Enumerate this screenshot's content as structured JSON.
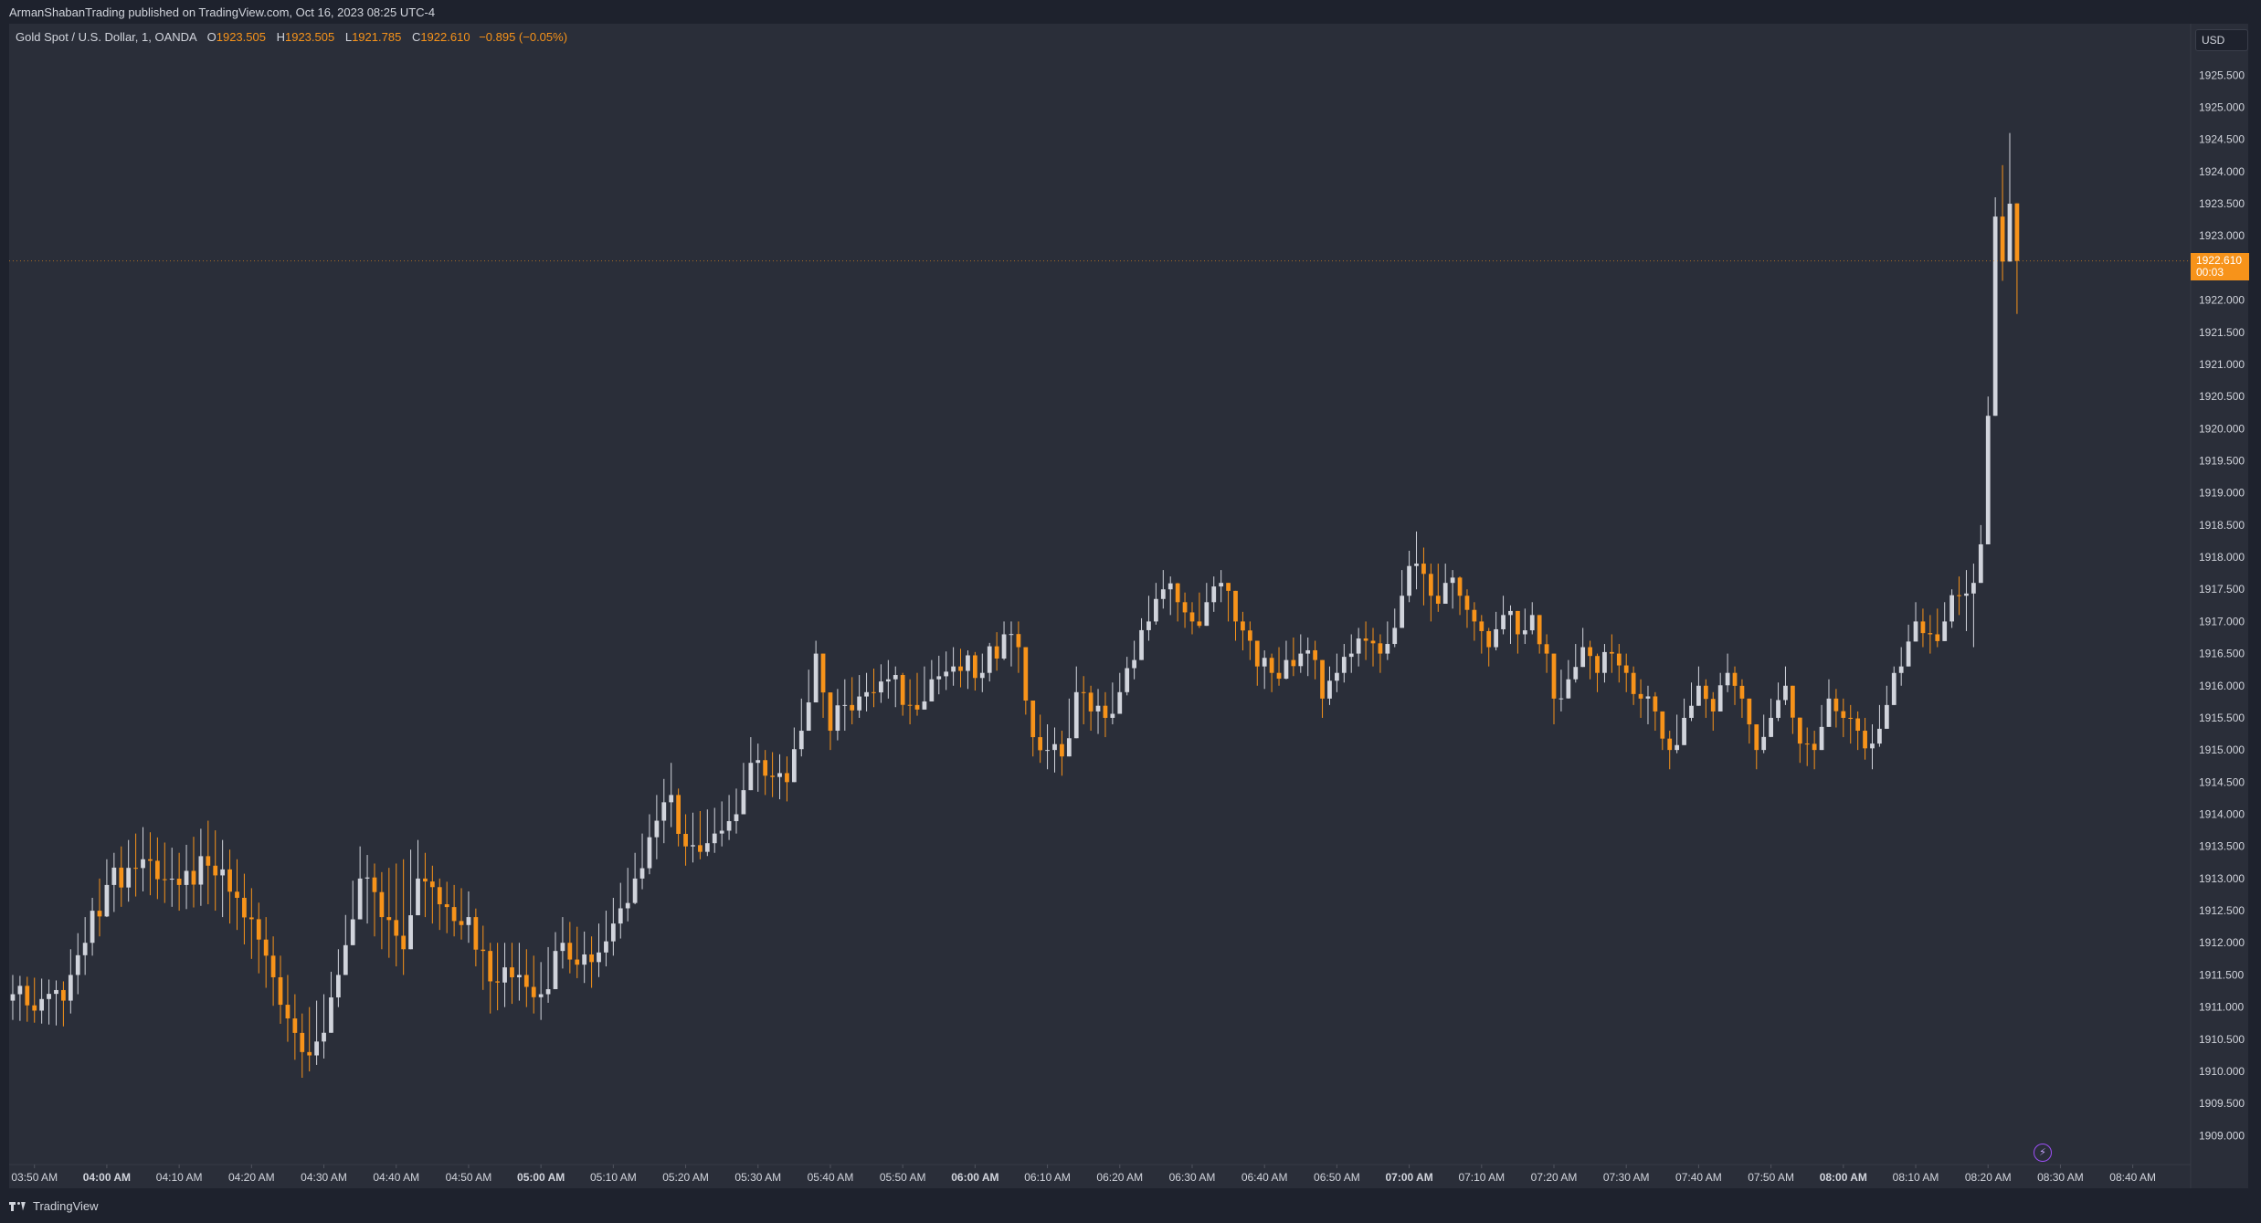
{
  "header": {
    "publisher": "ArmanShabanTrading published on TradingView.com, Oct 16, 2023 08:25 UTC-4"
  },
  "legend": {
    "symbol": "Gold Spot / U.S. Dollar, 1, OANDA",
    "open_label": "O",
    "open": "1923.505",
    "high_label": "H",
    "high": "1923.505",
    "low_label": "L",
    "low": "1921.785",
    "close_label": "C",
    "close": "1922.610",
    "change": "−0.895 (−0.05%)"
  },
  "price_scale": {
    "currency": "USD",
    "ticks": [
      "1925.500",
      "1925.000",
      "1924.500",
      "1924.000",
      "1923.500",
      "1923.000",
      "1922.000",
      "1921.500",
      "1921.000",
      "1920.500",
      "1920.000",
      "1919.500",
      "1919.000",
      "1918.500",
      "1918.000",
      "1917.500",
      "1917.000",
      "1916.500",
      "1916.000",
      "1915.500",
      "1915.000",
      "1914.500",
      "1914.000",
      "1913.500",
      "1913.000",
      "1912.500",
      "1912.000",
      "1911.500",
      "1911.000",
      "1910.500",
      "1910.000",
      "1909.500",
      "1909.000"
    ],
    "current_price": "1922.610",
    "countdown": "00:03"
  },
  "footer": {
    "brand": "TradingView"
  },
  "icons": {
    "brand_logo": "tradingview-logo-icon",
    "alert": "lightning-bolt-icon"
  },
  "colors": {
    "up": "#d1d4dc",
    "down": "#f7931a",
    "background": "#2a2e39",
    "frame": "#1e222d",
    "accent": "#f7931a"
  },
  "chart_data": {
    "type": "candlestick",
    "title": "",
    "xlabel": "",
    "ylabel": "",
    "ylim": [
      1908.55,
      1926.3
    ],
    "x_ticks": [
      {
        "t": -10,
        "label": "03:50 AM",
        "bold": false
      },
      {
        "t": 0,
        "label": "04:00 AM",
        "bold": true
      },
      {
        "t": 10,
        "label": "04:10 AM",
        "bold": false
      },
      {
        "t": 20,
        "label": "04:20 AM",
        "bold": false
      },
      {
        "t": 30,
        "label": "04:30 AM",
        "bold": false
      },
      {
        "t": 40,
        "label": "04:40 AM",
        "bold": false
      },
      {
        "t": 50,
        "label": "04:50 AM",
        "bold": false
      },
      {
        "t": 60,
        "label": "05:00 AM",
        "bold": true
      },
      {
        "t": 70,
        "label": "05:10 AM",
        "bold": false
      },
      {
        "t": 80,
        "label": "05:20 AM",
        "bold": false
      },
      {
        "t": 90,
        "label": "05:30 AM",
        "bold": false
      },
      {
        "t": 100,
        "label": "05:40 AM",
        "bold": false
      },
      {
        "t": 110,
        "label": "05:50 AM",
        "bold": false
      },
      {
        "t": 120,
        "label": "06:00 AM",
        "bold": true
      },
      {
        "t": 130,
        "label": "06:10 AM",
        "bold": false
      },
      {
        "t": 140,
        "label": "06:20 AM",
        "bold": false
      },
      {
        "t": 150,
        "label": "06:30 AM",
        "bold": false
      },
      {
        "t": 160,
        "label": "06:40 AM",
        "bold": false
      },
      {
        "t": 170,
        "label": "06:50 AM",
        "bold": false
      },
      {
        "t": 180,
        "label": "07:00 AM",
        "bold": true
      },
      {
        "t": 190,
        "label": "07:10 AM",
        "bold": false
      },
      {
        "t": 200,
        "label": "07:20 AM",
        "bold": false
      },
      {
        "t": 210,
        "label": "07:30 AM",
        "bold": false
      },
      {
        "t": 220,
        "label": "07:40 AM",
        "bold": false
      },
      {
        "t": 230,
        "label": "07:50 AM",
        "bold": false
      },
      {
        "t": 240,
        "label": "08:00 AM",
        "bold": true
      },
      {
        "t": 250,
        "label": "08:10 AM",
        "bold": false
      },
      {
        "t": 260,
        "label": "08:20 AM",
        "bold": false
      },
      {
        "t": 270,
        "label": "08:30 AM",
        "bold": false
      },
      {
        "t": 280,
        "label": "08:40 AM",
        "bold": false
      }
    ],
    "grid": false,
    "series": [
      {
        "keys": [
          {
            "t": -13,
            "c": 1911.2,
            "h": 1911.5,
            "l": 1910.8
          },
          {
            "t": -6,
            "c": 1911.1,
            "h": 1911.4,
            "l": 1910.7
          },
          {
            "t": -5,
            "c": 1911.5,
            "h": 1911.9,
            "l": 1910.9
          },
          {
            "t": -3,
            "c": 1912.0,
            "h": 1912.4,
            "l": 1911.5
          },
          {
            "t": 0,
            "c": 1912.9,
            "h": 1913.3,
            "l": 1912.4
          },
          {
            "t": 5,
            "c": 1913.3,
            "h": 1913.8,
            "l": 1912.8
          },
          {
            "t": 10,
            "c": 1912.9,
            "h": 1913.4,
            "l": 1912.5
          },
          {
            "t": 14,
            "c": 1913.2,
            "h": 1913.9,
            "l": 1912.6
          },
          {
            "t": 18,
            "c": 1912.7,
            "h": 1913.3,
            "l": 1912.2
          },
          {
            "t": 22,
            "c": 1911.8,
            "h": 1912.4,
            "l": 1911.3
          },
          {
            "t": 27,
            "c": 1910.3,
            "h": 1910.9,
            "l": 1909.9
          },
          {
            "t": 30,
            "c": 1910.6,
            "h": 1911.2,
            "l": 1910.2
          },
          {
            "t": 32,
            "c": 1911.5,
            "h": 1911.9,
            "l": 1911.0
          },
          {
            "t": 35,
            "c": 1913.0,
            "h": 1913.5,
            "l": 1912.5
          },
          {
            "t": 38,
            "c": 1912.4,
            "h": 1913.1,
            "l": 1911.9
          },
          {
            "t": 41,
            "c": 1911.9,
            "h": 1913.3,
            "l": 1911.5
          },
          {
            "t": 43,
            "c": 1913.0,
            "h": 1913.6,
            "l": 1912.5
          },
          {
            "t": 46,
            "c": 1912.6,
            "h": 1913.0,
            "l": 1912.2
          },
          {
            "t": 50,
            "c": 1912.4,
            "h": 1912.8,
            "l": 1912.0
          },
          {
            "t": 53,
            "c": 1911.4,
            "h": 1912.0,
            "l": 1910.9
          },
          {
            "t": 57,
            "c": 1911.5,
            "h": 1912.0,
            "l": 1911.1
          },
          {
            "t": 60,
            "c": 1911.2,
            "h": 1911.7,
            "l": 1910.8
          },
          {
            "t": 63,
            "c": 1912.0,
            "h": 1912.4,
            "l": 1911.6
          },
          {
            "t": 67,
            "c": 1911.7,
            "h": 1912.1,
            "l": 1911.3
          },
          {
            "t": 70,
            "c": 1912.3,
            "h": 1912.7,
            "l": 1911.8
          },
          {
            "t": 73,
            "c": 1913.0,
            "h": 1913.4,
            "l": 1912.6
          },
          {
            "t": 76,
            "c": 1913.9,
            "h": 1914.3,
            "l": 1913.3
          },
          {
            "t": 78,
            "c": 1914.3,
            "h": 1914.8,
            "l": 1913.8
          },
          {
            "t": 80,
            "c": 1913.5,
            "h": 1914.0,
            "l": 1913.2
          },
          {
            "t": 84,
            "c": 1913.7,
            "h": 1914.1,
            "l": 1913.4
          },
          {
            "t": 87,
            "c": 1914.0,
            "h": 1914.4,
            "l": 1913.7
          },
          {
            "t": 89,
            "c": 1914.8,
            "h": 1915.2,
            "l": 1914.4
          },
          {
            "t": 91,
            "c": 1914.6,
            "h": 1915.0,
            "l": 1914.3
          },
          {
            "t": 94,
            "c": 1914.5,
            "h": 1914.9,
            "l": 1914.2
          },
          {
            "t": 96,
            "c": 1915.3,
            "h": 1915.8,
            "l": 1914.9
          },
          {
            "t": 98,
            "c": 1916.5,
            "h": 1916.7,
            "l": 1916.0
          },
          {
            "t": 100,
            "c": 1915.3,
            "h": 1915.8,
            "l": 1915.0
          },
          {
            "t": 102,
            "c": 1915.7,
            "h": 1916.1,
            "l": 1915.3
          },
          {
            "t": 105,
            "c": 1915.9,
            "h": 1916.2,
            "l": 1915.6
          },
          {
            "t": 108,
            "c": 1916.1,
            "h": 1916.4,
            "l": 1915.8
          },
          {
            "t": 111,
            "c": 1915.7,
            "h": 1916.1,
            "l": 1915.4
          },
          {
            "t": 114,
            "c": 1916.1,
            "h": 1916.4,
            "l": 1915.8
          },
          {
            "t": 117,
            "c": 1916.3,
            "h": 1916.6,
            "l": 1916.0
          },
          {
            "t": 121,
            "c": 1916.2,
            "h": 1916.5,
            "l": 1915.9
          },
          {
            "t": 124,
            "c": 1916.8,
            "h": 1917.0,
            "l": 1916.4
          },
          {
            "t": 126,
            "c": 1916.6,
            "h": 1917.0,
            "l": 1916.2
          },
          {
            "t": 128,
            "c": 1915.2,
            "h": 1915.7,
            "l": 1914.9
          },
          {
            "t": 130,
            "c": 1915.0,
            "h": 1915.4,
            "l": 1914.7
          },
          {
            "t": 132,
            "c": 1914.9,
            "h": 1915.3,
            "l": 1914.6
          },
          {
            "t": 134,
            "c": 1915.9,
            "h": 1916.3,
            "l": 1915.5
          },
          {
            "t": 136,
            "c": 1915.6,
            "h": 1916.0,
            "l": 1915.3
          },
          {
            "t": 138,
            "c": 1915.5,
            "h": 1915.9,
            "l": 1915.2
          },
          {
            "t": 140,
            "c": 1915.9,
            "h": 1916.2,
            "l": 1915.6
          },
          {
            "t": 142,
            "c": 1916.4,
            "h": 1916.7,
            "l": 1916.1
          },
          {
            "t": 144,
            "c": 1917.0,
            "h": 1917.4,
            "l": 1916.7
          },
          {
            "t": 146,
            "c": 1917.5,
            "h": 1917.8,
            "l": 1917.2
          },
          {
            "t": 148,
            "c": 1917.3,
            "h": 1917.6,
            "l": 1917.0
          },
          {
            "t": 150,
            "c": 1917.0,
            "h": 1917.3,
            "l": 1916.8
          },
          {
            "t": 152,
            "c": 1917.3,
            "h": 1917.6,
            "l": 1917.0
          },
          {
            "t": 154,
            "c": 1917.6,
            "h": 1917.8,
            "l": 1917.3
          },
          {
            "t": 156,
            "c": 1917.0,
            "h": 1917.3,
            "l": 1916.7
          },
          {
            "t": 158,
            "c": 1916.7,
            "h": 1917.0,
            "l": 1916.4
          },
          {
            "t": 159,
            "c": 1916.3,
            "h": 1916.6,
            "l": 1916.0
          },
          {
            "t": 161,
            "c": 1916.2,
            "h": 1916.5,
            "l": 1915.9
          },
          {
            "t": 163,
            "c": 1916.4,
            "h": 1916.7,
            "l": 1916.1
          },
          {
            "t": 165,
            "c": 1916.5,
            "h": 1916.8,
            "l": 1916.2
          },
          {
            "t": 167,
            "c": 1916.4,
            "h": 1916.7,
            "l": 1916.1
          },
          {
            "t": 168,
            "c": 1915.8,
            "h": 1916.1,
            "l": 1915.5
          },
          {
            "t": 170,
            "c": 1916.2,
            "h": 1916.5,
            "l": 1915.9
          },
          {
            "t": 172,
            "c": 1916.5,
            "h": 1916.8,
            "l": 1916.2
          },
          {
            "t": 174,
            "c": 1916.7,
            "h": 1917.0,
            "l": 1916.4
          },
          {
            "t": 176,
            "c": 1916.5,
            "h": 1916.8,
            "l": 1916.2
          },
          {
            "t": 178,
            "c": 1916.9,
            "h": 1917.2,
            "l": 1916.6
          },
          {
            "t": 179,
            "c": 1917.4,
            "h": 1917.8,
            "l": 1917.1
          },
          {
            "t": 181,
            "c": 1917.9,
            "h": 1918.4,
            "l": 1917.5
          },
          {
            "t": 183,
            "c": 1917.4,
            "h": 1917.9,
            "l": 1917.0
          },
          {
            "t": 185,
            "c": 1917.6,
            "h": 1917.9,
            "l": 1917.3
          },
          {
            "t": 187,
            "c": 1917.4,
            "h": 1917.7,
            "l": 1917.1
          },
          {
            "t": 189,
            "c": 1917.0,
            "h": 1917.3,
            "l": 1916.7
          },
          {
            "t": 191,
            "c": 1916.6,
            "h": 1916.9,
            "l": 1916.3
          },
          {
            "t": 193,
            "c": 1917.1,
            "h": 1917.4,
            "l": 1916.8
          },
          {
            "t": 195,
            "c": 1916.8,
            "h": 1917.1,
            "l": 1916.5
          },
          {
            "t": 197,
            "c": 1917.1,
            "h": 1917.3,
            "l": 1916.8
          },
          {
            "t": 199,
            "c": 1916.5,
            "h": 1916.8,
            "l": 1916.2
          },
          {
            "t": 200,
            "c": 1915.8,
            "h": 1916.1,
            "l": 1915.4
          },
          {
            "t": 202,
            "c": 1916.1,
            "h": 1916.4,
            "l": 1915.8
          },
          {
            "t": 204,
            "c": 1916.6,
            "h": 1916.9,
            "l": 1916.3
          },
          {
            "t": 206,
            "c": 1916.2,
            "h": 1916.5,
            "l": 1915.9
          },
          {
            "t": 208,
            "c": 1916.5,
            "h": 1916.8,
            "l": 1916.2
          },
          {
            "t": 210,
            "c": 1916.2,
            "h": 1916.5,
            "l": 1915.9
          },
          {
            "t": 212,
            "c": 1915.8,
            "h": 1916.1,
            "l": 1915.5
          },
          {
            "t": 214,
            "c": 1915.6,
            "h": 1915.9,
            "l": 1915.3
          },
          {
            "t": 216,
            "c": 1915.0,
            "h": 1915.3,
            "l": 1914.7
          },
          {
            "t": 218,
            "c": 1915.5,
            "h": 1915.8,
            "l": 1915.2
          },
          {
            "t": 220,
            "c": 1916.0,
            "h": 1916.3,
            "l": 1915.7
          },
          {
            "t": 222,
            "c": 1915.6,
            "h": 1915.9,
            "l": 1915.3
          },
          {
            "t": 224,
            "c": 1916.2,
            "h": 1916.5,
            "l": 1915.9
          },
          {
            "t": 226,
            "c": 1915.8,
            "h": 1916.1,
            "l": 1915.5
          },
          {
            "t": 228,
            "c": 1915.0,
            "h": 1915.3,
            "l": 1914.7
          },
          {
            "t": 230,
            "c": 1915.5,
            "h": 1915.8,
            "l": 1915.2
          },
          {
            "t": 232,
            "c": 1916.0,
            "h": 1916.3,
            "l": 1915.7
          },
          {
            "t": 234,
            "c": 1915.1,
            "h": 1915.4,
            "l": 1914.8
          },
          {
            "t": 236,
            "c": 1915.0,
            "h": 1915.3,
            "l": 1914.7
          },
          {
            "t": 238,
            "c": 1915.8,
            "h": 1916.1,
            "l": 1915.5
          },
          {
            "t": 240,
            "c": 1915.5,
            "h": 1915.8,
            "l": 1915.2
          },
          {
            "t": 242,
            "c": 1915.3,
            "h": 1915.6,
            "l": 1915.0
          },
          {
            "t": 244,
            "c": 1915.1,
            "h": 1915.4,
            "l": 1914.7
          },
          {
            "t": 246,
            "c": 1915.7,
            "h": 1916.0,
            "l": 1915.4
          },
          {
            "t": 248,
            "c": 1916.3,
            "h": 1916.6,
            "l": 1916.0
          },
          {
            "t": 250,
            "c": 1917.0,
            "h": 1917.3,
            "l": 1916.7
          },
          {
            "t": 252,
            "c": 1916.8,
            "h": 1917.1,
            "l": 1916.5
          },
          {
            "t": 254,
            "c": 1917.0,
            "h": 1917.3,
            "l": 1916.7
          },
          {
            "t": 256,
            "c": 1917.4,
            "h": 1917.7,
            "l": 1917.1
          },
          {
            "t": 258,
            "c": 1917.6,
            "h": 1917.9,
            "l": 1916.6
          },
          {
            "t": 259,
            "c": 1918.2,
            "h": 1918.5,
            "l": 1917.8
          },
          {
            "t": 260,
            "c": 1920.2,
            "h": 1920.5,
            "l": 1920.0
          },
          {
            "t": 261,
            "c": 1923.3,
            "h": 1923.6,
            "l": 1923.0
          },
          {
            "t": 262,
            "c": 1922.6,
            "h": 1924.1,
            "l": 1922.3
          },
          {
            "t": 263,
            "c": 1923.5,
            "h": 1924.6,
            "l": 1923.2
          },
          {
            "t": 264,
            "c": 1922.61,
            "h": 1923.505,
            "l": 1921.785
          }
        ]
      }
    ]
  }
}
